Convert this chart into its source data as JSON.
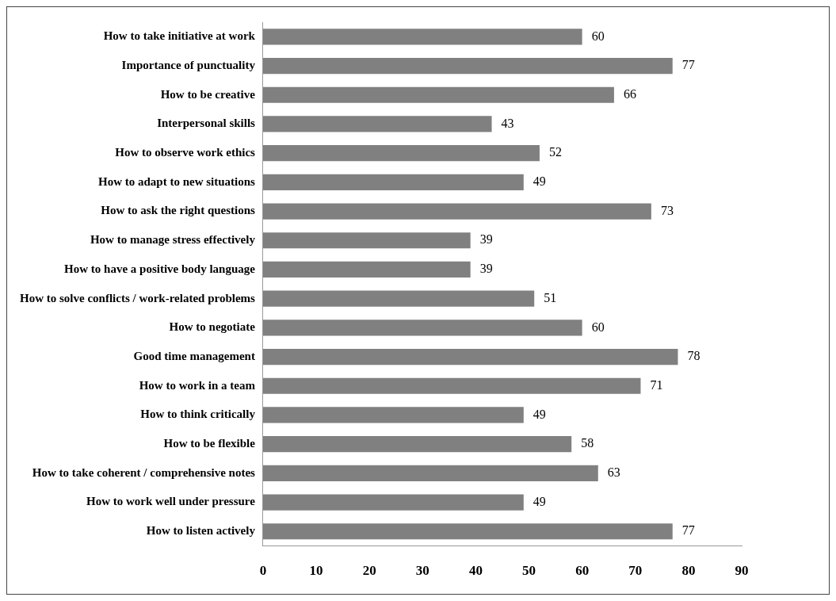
{
  "chart_data": {
    "type": "bar",
    "orientation": "horizontal",
    "categories": [
      "How to take initiative at work",
      "Importance of punctuality",
      "How to be creative",
      "Interpersonal skills",
      "How to observe work ethics",
      "How to adapt to new situations",
      "How to ask the right questions",
      "How to manage stress effectively",
      "How to have a positive body language",
      "How to solve conflicts / work-related problems",
      "How to negotiate",
      "Good time management",
      "How to work in a team",
      "How to think critically",
      "How to be flexible",
      "How to take coherent / comprehensive notes",
      "How to work well under pressure",
      "How to listen actively"
    ],
    "values": [
      60,
      77,
      66,
      43,
      52,
      49,
      73,
      39,
      39,
      51,
      60,
      78,
      71,
      49,
      58,
      63,
      49,
      77
    ],
    "color": "#808080",
    "xlim": [
      0,
      90
    ],
    "xticks": [
      0,
      10,
      20,
      30,
      40,
      50,
      60,
      70,
      80,
      90
    ],
    "data_labels": true,
    "grid": false,
    "legend": false
  }
}
